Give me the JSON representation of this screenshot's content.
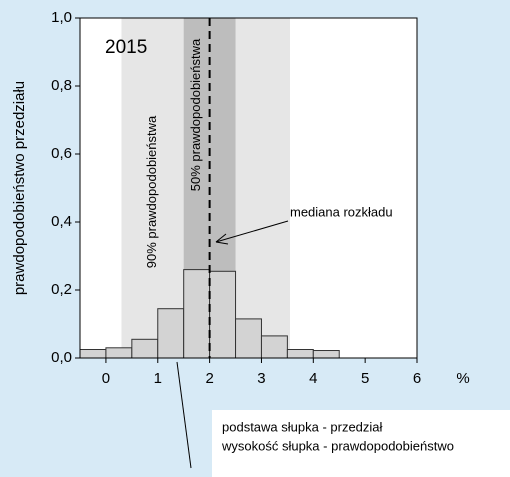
{
  "chart_data": {
    "type": "histogram",
    "title": "2015",
    "y_label": "prawdopodobieństwo przedziału",
    "x_unit": "%",
    "bins": [
      -0.5,
      0,
      0.5,
      1,
      1.5,
      2,
      2.5,
      3,
      3.5,
      4,
      4.5
    ],
    "values": [
      0.025,
      0.03,
      0.055,
      0.145,
      0.26,
      0.255,
      0.115,
      0.065,
      0.025,
      0.022
    ],
    "color": "#d3d3d3",
    "xlim": [
      -0.5,
      6
    ],
    "xticks": [
      0,
      1,
      2,
      3,
      4,
      5,
      6
    ],
    "ylim": [
      0,
      1
    ],
    "yticks": [
      {
        "value": 0,
        "label": "0,0"
      },
      {
        "value": 0.2,
        "label": "0,2"
      },
      {
        "value": 0.4,
        "label": "0,4"
      },
      {
        "value": 0.6,
        "label": "0,6"
      },
      {
        "value": 0.8,
        "label": "0,8"
      },
      {
        "value": 1,
        "label": "1,0"
      }
    ],
    "bands": [
      {
        "label": "90% prawdopodobieństwa",
        "range": [
          0.3,
          3.55
        ],
        "color": "#e6e6e6"
      },
      {
        "label": "50% prawdopodobieństwa",
        "range": [
          1.5,
          2.5
        ],
        "color": "#bdbdbd"
      }
    ],
    "median": {
      "label": "mediana rozkładu",
      "value": 2
    },
    "note": [
      "podstawa słupka - przedział",
      "wysokość słupka - prawdopodobieństwo"
    ]
  }
}
